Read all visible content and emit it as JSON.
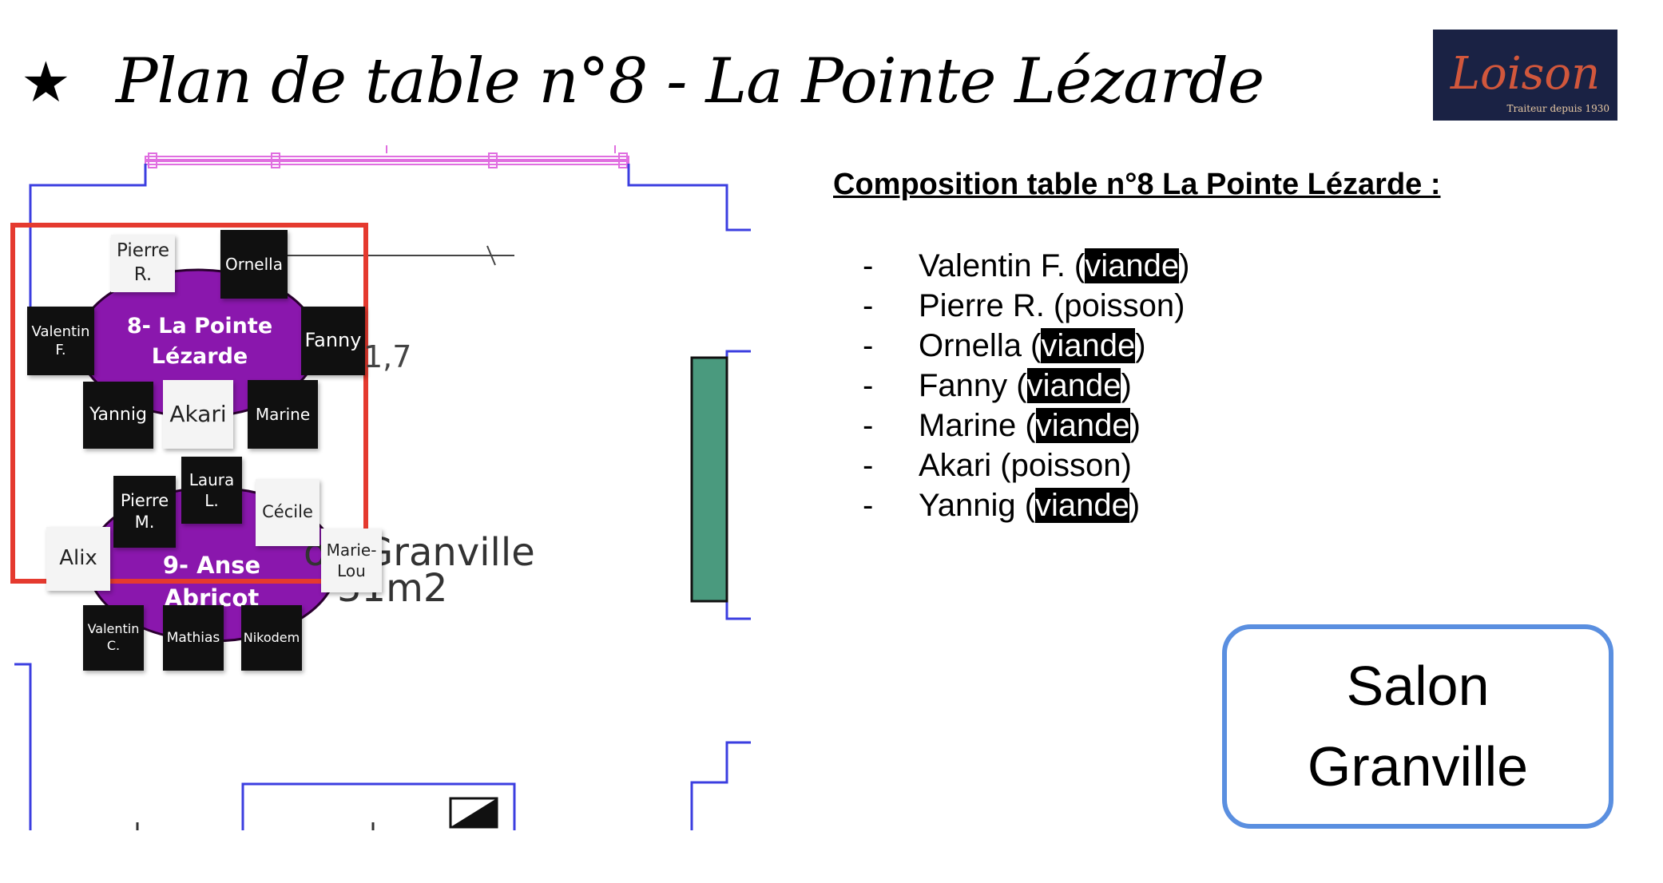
{
  "header": {
    "star_glyph": "★",
    "title": "Plan de table n°8 -  La Pointe Lézarde"
  },
  "logo": {
    "word": "Loison",
    "tagline": "Traiteur depuis 1930",
    "bg_color": "#1a2244",
    "text_color": "#d1573c"
  },
  "plan": {
    "dimension": "1,7",
    "room_label": "on Granville",
    "room_area": "31m2",
    "table_color": "#8a17ad",
    "highlight_color": "#e53a2f",
    "tables": [
      {
        "label_line1": "8- La Pointe",
        "label_line2": "Lézarde",
        "guests": [
          {
            "name": "Pierre R.",
            "style": "light"
          },
          {
            "name": "Ornella",
            "style": "dark"
          },
          {
            "name": "Valentin F.",
            "style": "dark"
          },
          {
            "name": "Fanny",
            "style": "dark"
          },
          {
            "name": "Yannig",
            "style": "dark"
          },
          {
            "name": "Akari",
            "style": "light"
          },
          {
            "name": "Marine",
            "style": "dark"
          }
        ]
      },
      {
        "label_line1": "9- Anse Abricot",
        "guests": [
          {
            "name": "Laura L.",
            "style": "dark"
          },
          {
            "name": "Pierre M.",
            "style": "dark"
          },
          {
            "name": "Cécile",
            "style": "light"
          },
          {
            "name": "Alix",
            "style": "light"
          },
          {
            "name": "Marie-Lou",
            "style": "light"
          },
          {
            "name": "Valentin C.",
            "style": "dark"
          },
          {
            "name": "Mathias",
            "style": "dark"
          },
          {
            "name": "Nikodem",
            "style": "dark"
          }
        ]
      }
    ]
  },
  "composition": {
    "title": "Composition table n°8 La Pointe Lézarde :",
    "items": [
      {
        "dash": "-",
        "name": "Valentin F.",
        "choice": "viande",
        "highlight": true
      },
      {
        "dash": "-",
        "name": "Pierre R.",
        "choice": "poisson",
        "highlight": false
      },
      {
        "dash": "-",
        "name": "Ornella",
        "choice": "viande",
        "highlight": true
      },
      {
        "dash": "-",
        "name": "Fanny",
        "choice": "viande",
        "highlight": true
      },
      {
        "dash": "-",
        "name": "Marine",
        "choice": "viande",
        "highlight": true
      },
      {
        "dash": "-",
        "name": "Akari",
        "choice": "poisson",
        "highlight": false
      },
      {
        "dash": "-",
        "name": "Yannig",
        "choice": "viande",
        "highlight": true
      }
    ]
  },
  "salon": {
    "line1": "Salon",
    "line2": "Granville",
    "border_color": "#5a8fe0"
  }
}
